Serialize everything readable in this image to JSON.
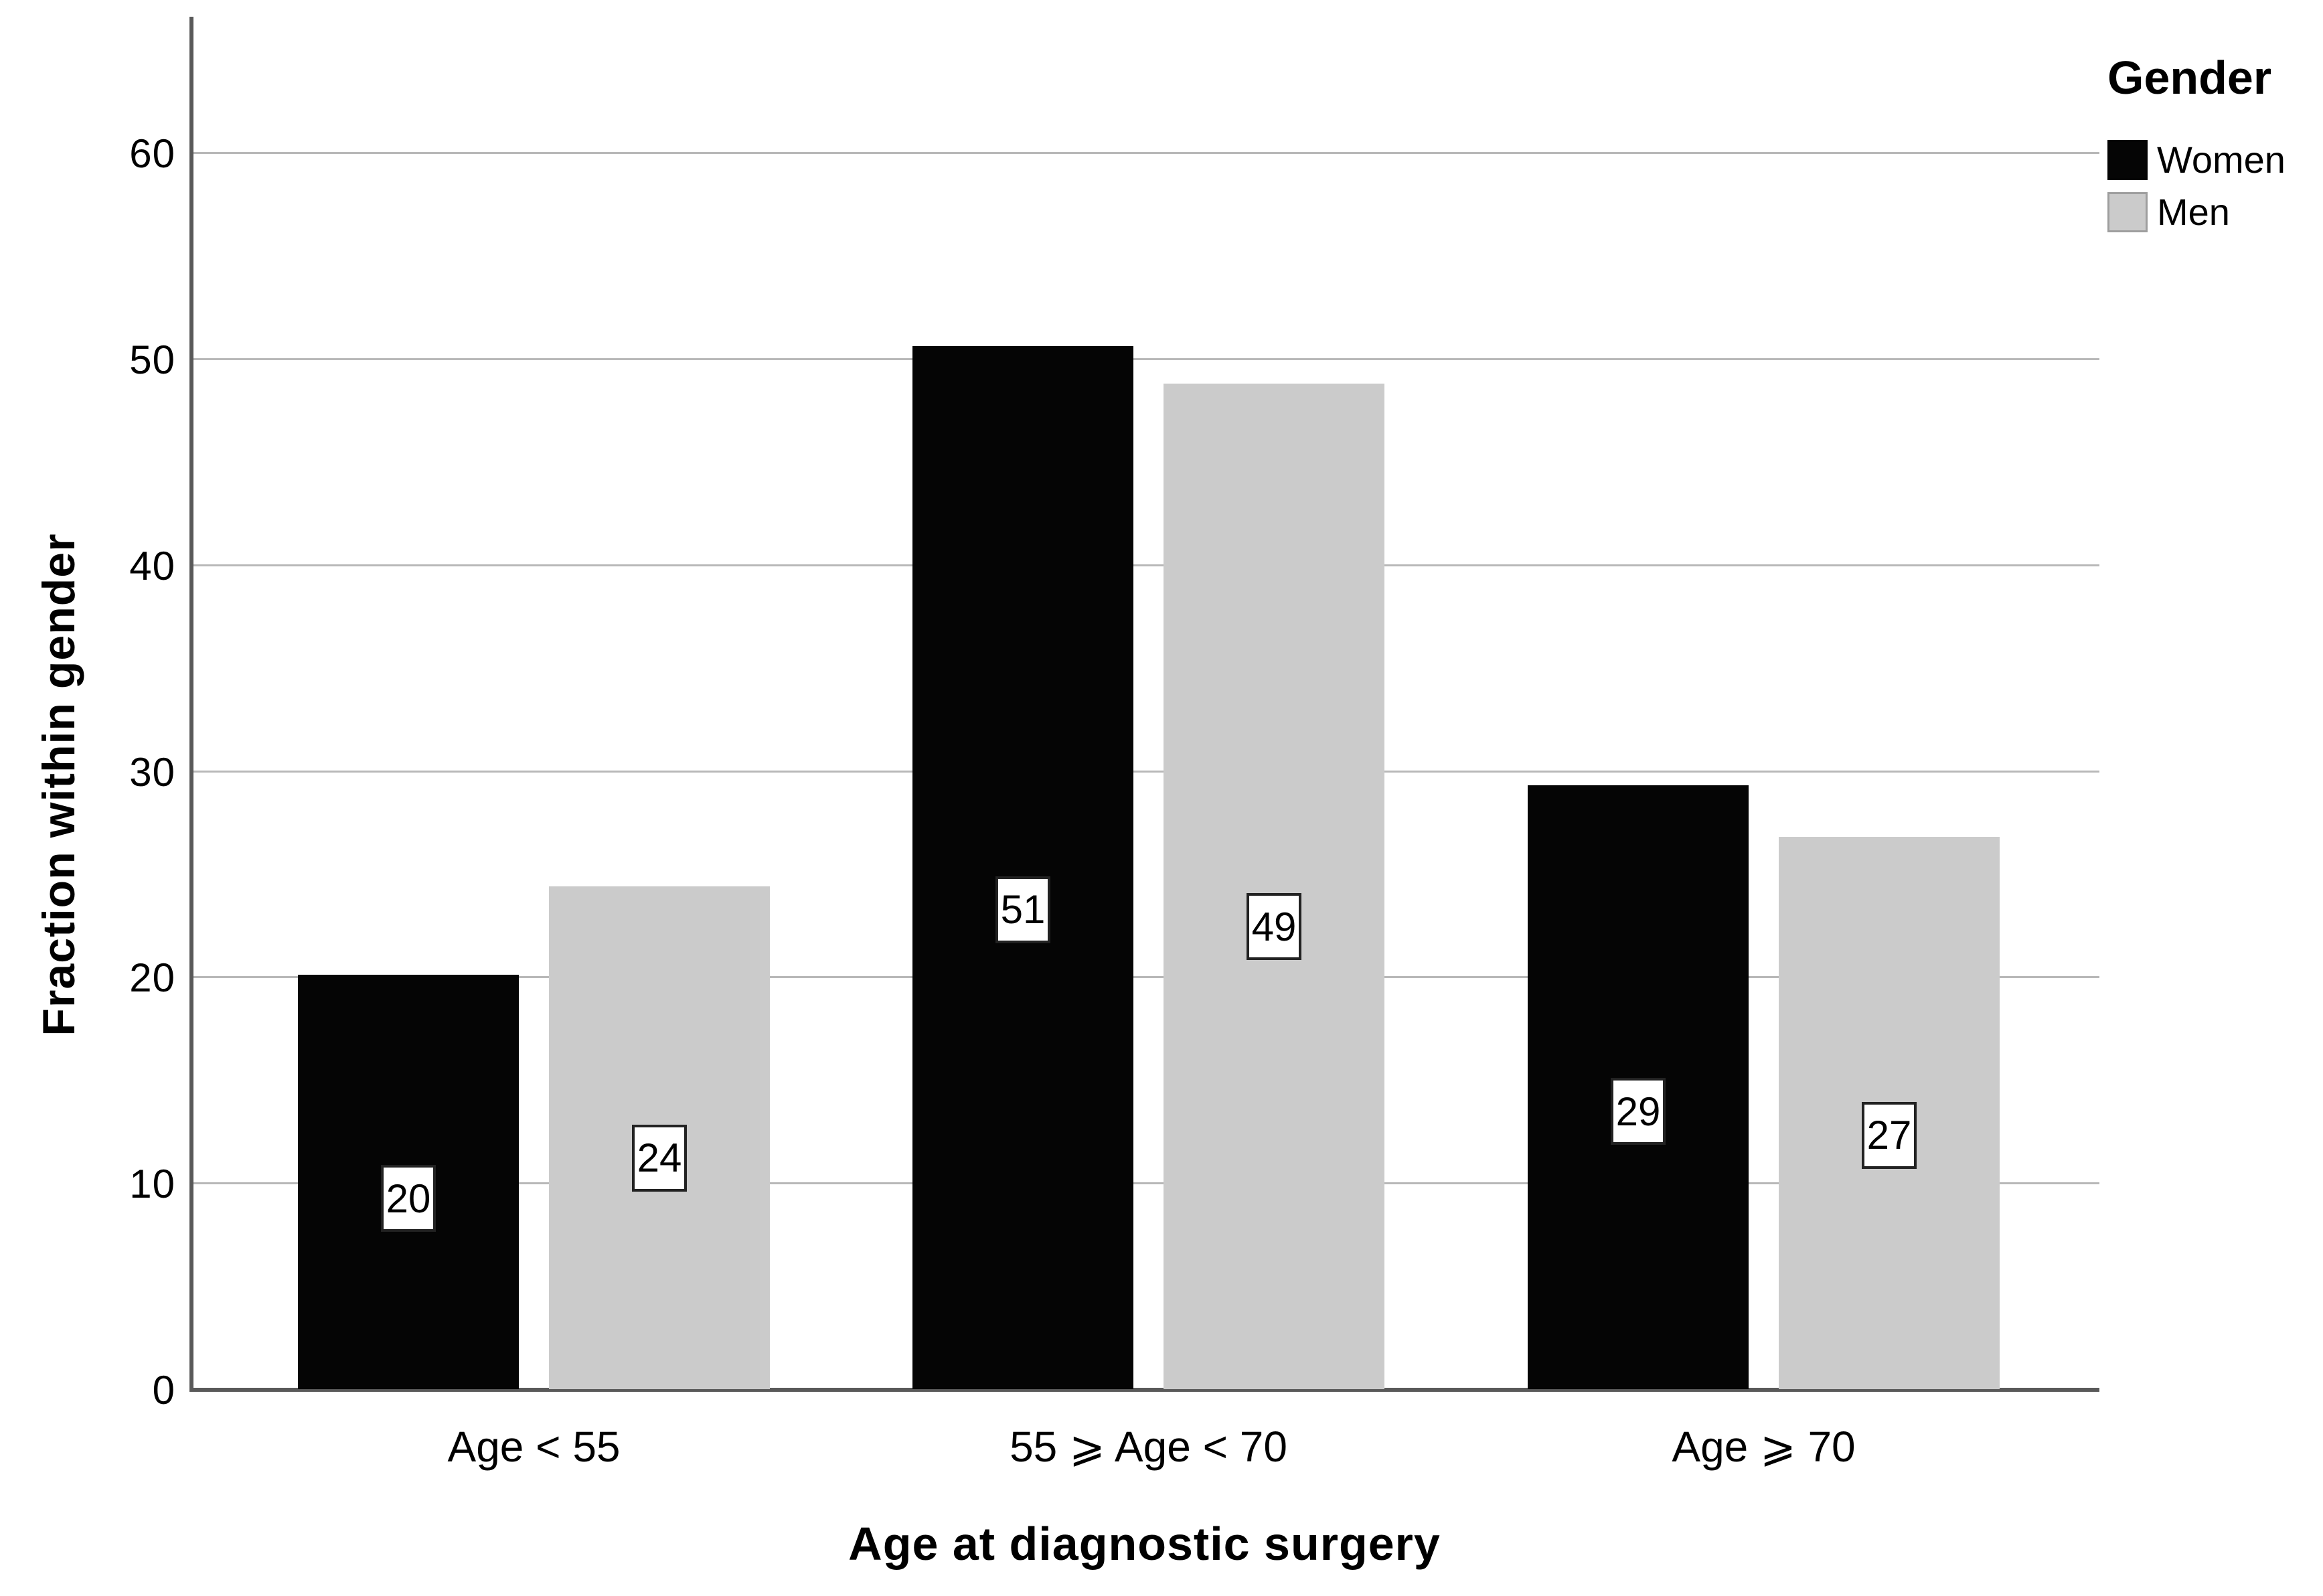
{
  "chart_data": {
    "type": "bar",
    "title": "",
    "x_axis_title": "Age at diagnostic surgery",
    "y_axis_title": "Fraction within gender",
    "categories": [
      "Age < 55",
      "55 ⩾ Age < 70",
      "Age ⩾ 70"
    ],
    "series": [
      {
        "name": "Women",
        "color": "#050505",
        "values": [
          20.1,
          50.6,
          29.3
        ],
        "labels": [
          "20",
          "51",
          "29"
        ]
      },
      {
        "name": "Men",
        "color": "#cbcbcb",
        "values": [
          24.4,
          48.8,
          26.8
        ],
        "labels": [
          "24",
          "49",
          "27"
        ]
      }
    ],
    "y_ticks": [
      0,
      10,
      20,
      30,
      40,
      50,
      60
    ],
    "ylim": [
      0,
      66.6
    ],
    "grid": true,
    "grid_color": "#b8b8b8",
    "axis_color": "#595959",
    "legend": {
      "title": "Gender",
      "position": "top-right"
    }
  }
}
